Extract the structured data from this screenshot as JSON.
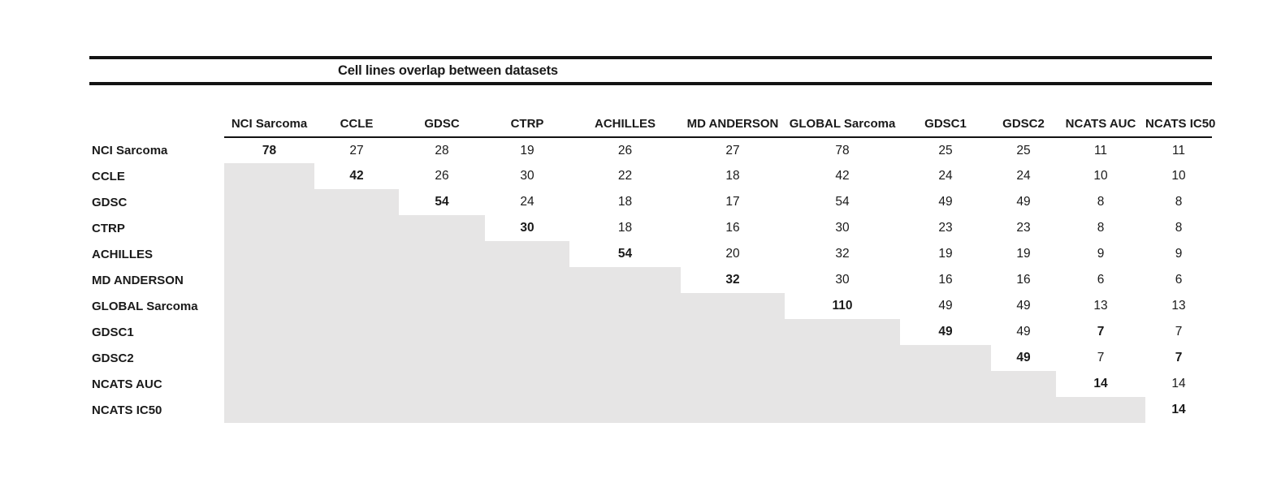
{
  "title": "Cell lines overlap between datasets",
  "chart_data": {
    "type": "table",
    "title": "Cell lines overlap between datasets",
    "columns": [
      "NCI Sarcoma",
      "CCLE",
      "GDSC",
      "CTRP",
      "ACHILLES",
      "MD ANDERSON",
      "GLOBAL Sarcoma",
      "GDSC1",
      "GDSC2",
      "NCATS AUC",
      "NCATS IC50"
    ],
    "rows": [
      "NCI Sarcoma",
      "CCLE",
      "GDSC",
      "CTRP",
      "ACHILLES",
      "MD ANDERSON",
      "GLOBAL Sarcoma",
      "GDSC1",
      "GDSC2",
      "NCATS AUC",
      "NCATS IC50"
    ],
    "matrix": [
      [
        78,
        27,
        28,
        19,
        26,
        27,
        78,
        25,
        25,
        11,
        11
      ],
      [
        null,
        42,
        26,
        30,
        22,
        18,
        42,
        24,
        24,
        10,
        10
      ],
      [
        null,
        null,
        54,
        24,
        18,
        17,
        54,
        49,
        49,
        8,
        8
      ],
      [
        null,
        null,
        null,
        30,
        18,
        16,
        30,
        23,
        23,
        8,
        8
      ],
      [
        null,
        null,
        null,
        null,
        54,
        20,
        32,
        19,
        19,
        9,
        9
      ],
      [
        null,
        null,
        null,
        null,
        null,
        32,
        30,
        16,
        16,
        6,
        6
      ],
      [
        null,
        null,
        null,
        null,
        null,
        null,
        110,
        49,
        49,
        13,
        13
      ],
      [
        null,
        null,
        null,
        null,
        null,
        null,
        null,
        49,
        49,
        7,
        7
      ],
      [
        null,
        null,
        null,
        null,
        null,
        null,
        null,
        null,
        49,
        7,
        7
      ],
      [
        null,
        null,
        null,
        null,
        null,
        null,
        null,
        null,
        null,
        14,
        14
      ],
      [
        null,
        null,
        null,
        null,
        null,
        null,
        null,
        null,
        null,
        null,
        14
      ]
    ],
    "bold_cells": [
      [
        0,
        0
      ],
      [
        1,
        1
      ],
      [
        2,
        2
      ],
      [
        3,
        3
      ],
      [
        4,
        4
      ],
      [
        5,
        5
      ],
      [
        6,
        6
      ],
      [
        7,
        7
      ],
      [
        7,
        9
      ],
      [
        8,
        8
      ],
      [
        8,
        10
      ],
      [
        9,
        9
      ],
      [
        10,
        10
      ]
    ],
    "shading": "lower-triangle empty cells shaded gray",
    "legend_position": "none",
    "grid": false
  },
  "colors": {
    "shaded_cell": "#e6e5e5",
    "rule": "#131313",
    "text": "#1a1a1a",
    "background": "#ffffff"
  }
}
